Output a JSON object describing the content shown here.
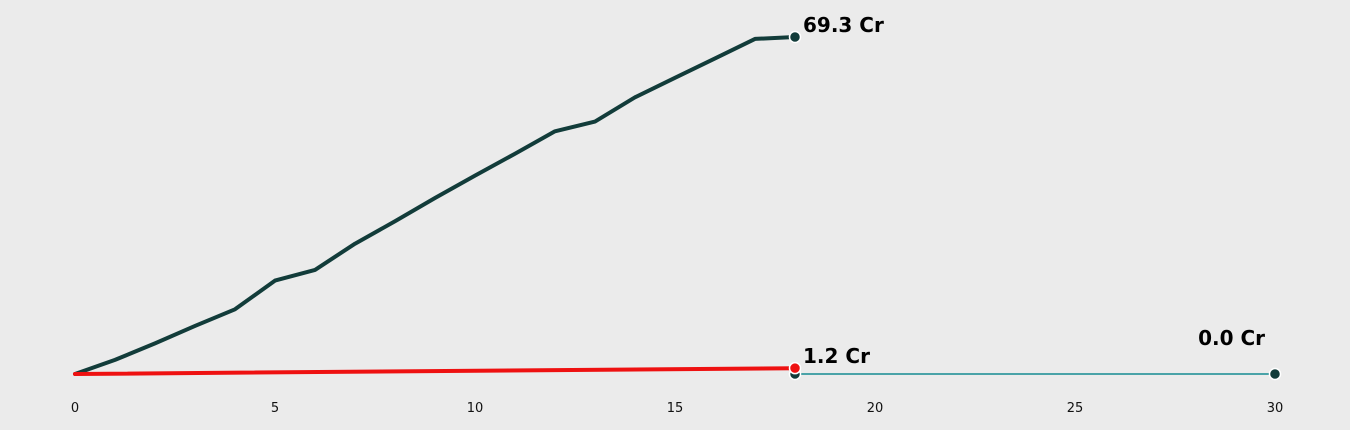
{
  "chart_data": {
    "type": "line",
    "title": "",
    "xlabel": "",
    "ylabel": "",
    "xlim": [
      0,
      30
    ],
    "ylim": [
      0,
      69.3
    ],
    "xticks": [
      0,
      5,
      10,
      15,
      20,
      25,
      30
    ],
    "grid": false,
    "legend": "none",
    "background": "#ebebeb",
    "series": [
      {
        "key": "cumulative",
        "color": "#123c3a",
        "points": [
          [
            0,
            0
          ],
          [
            1,
            2.9
          ],
          [
            2,
            6.3
          ],
          [
            3,
            9.9
          ],
          [
            4,
            13.3
          ],
          [
            5,
            19.2
          ],
          [
            6,
            21.4
          ],
          [
            7,
            26.8
          ],
          [
            8,
            31.4
          ],
          [
            9,
            36.2
          ],
          [
            10,
            40.8
          ],
          [
            11,
            45.3
          ],
          [
            12,
            49.9
          ],
          [
            13,
            51.9
          ],
          [
            14,
            56.9
          ],
          [
            15,
            60.9
          ],
          [
            16,
            64.9
          ],
          [
            17,
            68.9
          ],
          [
            18,
            69.3
          ]
        ],
        "end_label": "69.3 Cr",
        "end_marker": true
      },
      {
        "key": "highlight",
        "color": "#ee1111",
        "points": [
          [
            0,
            0
          ],
          [
            18,
            1.2
          ]
        ],
        "end_label": "1.2 Cr",
        "end_marker": true
      },
      {
        "key": "baseline",
        "color": "#4aa3a8",
        "points": [
          [
            18,
            0
          ],
          [
            30,
            0
          ]
        ],
        "end_label": "0.0 Cr",
        "end_marker": true,
        "start_marker": true
      }
    ]
  }
}
